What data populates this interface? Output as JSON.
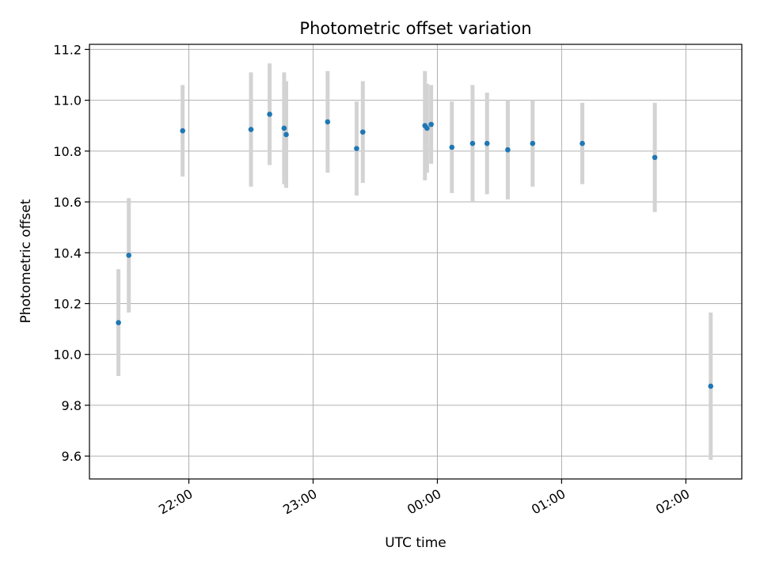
{
  "chart_data": {
    "type": "scatter",
    "title": "Photometric offset variation",
    "xlabel": "UTC time",
    "ylabel": "Photometric offset",
    "x_axis": "time",
    "xlim": [
      "2023-01-01T21:12:00",
      "2023-01-02T02:27:00"
    ],
    "ylim": [
      9.51,
      11.22
    ],
    "grid": true,
    "xticks": [
      {
        "t": "2023-01-01T22:00:00",
        "label": "22:00"
      },
      {
        "t": "2023-01-01T23:00:00",
        "label": "23:00"
      },
      {
        "t": "2023-01-02T00:00:00",
        "label": "00:00"
      },
      {
        "t": "2023-01-02T01:00:00",
        "label": "01:00"
      },
      {
        "t": "2023-01-02T02:00:00",
        "label": "02:00"
      }
    ],
    "yticks": [
      "9.6",
      "9.8",
      "10.0",
      "10.2",
      "10.4",
      "10.6",
      "10.8",
      "11.0",
      "11.2"
    ],
    "marker_color": "#1f77b4",
    "errorbar_color": "#d3d3d3",
    "points": [
      {
        "t": "2023-01-01T21:26:00",
        "y": 10.125,
        "err": 0.21
      },
      {
        "t": "2023-01-01T21:31:00",
        "y": 10.39,
        "err": 0.225
      },
      {
        "t": "2023-01-01T21:57:00",
        "y": 10.88,
        "err": 0.18
      },
      {
        "t": "2023-01-01T22:30:00",
        "y": 10.885,
        "err": 0.225
      },
      {
        "t": "2023-01-01T22:39:00",
        "y": 10.945,
        "err": 0.2
      },
      {
        "t": "2023-01-01T22:46:00",
        "y": 10.89,
        "err": 0.22
      },
      {
        "t": "2023-01-01T22:47:00",
        "y": 10.865,
        "err": 0.21
      },
      {
        "t": "2023-01-01T23:07:00",
        "y": 10.915,
        "err": 0.2
      },
      {
        "t": "2023-01-01T23:21:00",
        "y": 10.81,
        "err": 0.185
      },
      {
        "t": "2023-01-01T23:24:00",
        "y": 10.875,
        "err": 0.2
      },
      {
        "t": "2023-01-01T23:54:00",
        "y": 10.9,
        "err": 0.215
      },
      {
        "t": "2023-01-01T23:55:00",
        "y": 10.89,
        "err": 0.175
      },
      {
        "t": "2023-01-01T23:57:00",
        "y": 10.905,
        "err": 0.155
      },
      {
        "t": "2023-01-02T00:07:00",
        "y": 10.815,
        "err": 0.18
      },
      {
        "t": "2023-01-02T00:17:00",
        "y": 10.83,
        "err": 0.23
      },
      {
        "t": "2023-01-02T00:24:00",
        "y": 10.83,
        "err": 0.2
      },
      {
        "t": "2023-01-02T00:34:00",
        "y": 10.805,
        "err": 0.195
      },
      {
        "t": "2023-01-02T00:46:00",
        "y": 10.83,
        "err": 0.17
      },
      {
        "t": "2023-01-02T01:10:00",
        "y": 10.83,
        "err": 0.16
      },
      {
        "t": "2023-01-02T01:45:00",
        "y": 10.775,
        "err": 0.215
      },
      {
        "t": "2023-01-02T02:12:00",
        "y": 9.875,
        "err": 0.29
      }
    ]
  }
}
